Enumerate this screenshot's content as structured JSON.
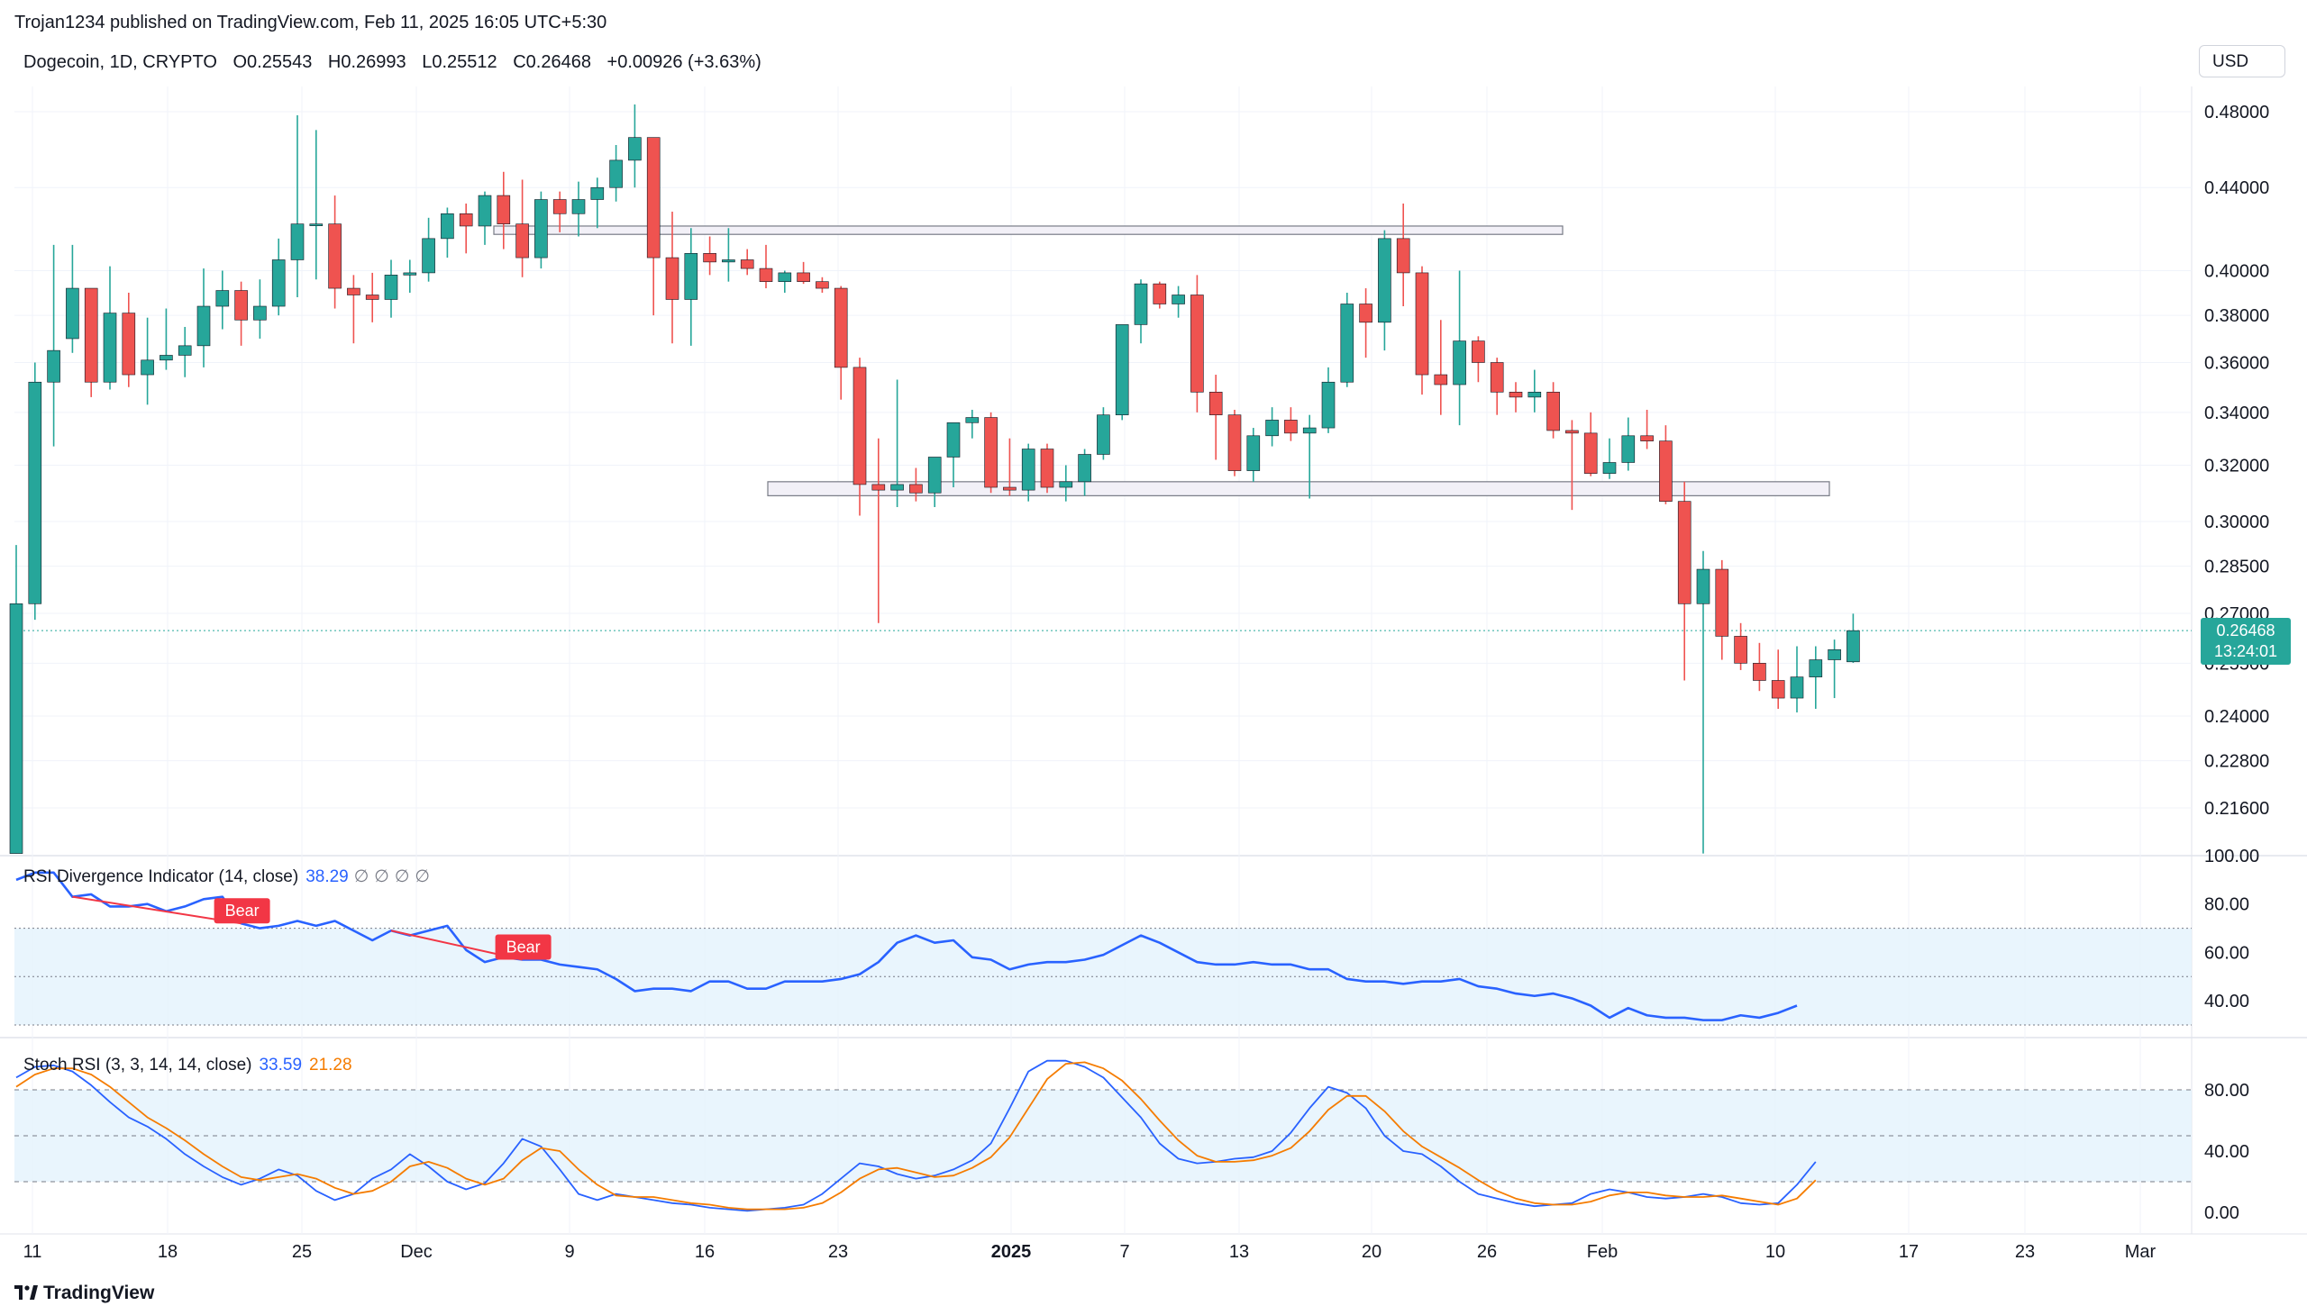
{
  "header": {
    "publisher": "Trojan1234 published on TradingView.com, Feb 11, 2025 16:05 UTC+5:30",
    "symbol": "Dogecoin, 1D, CRYPTO",
    "open": "O0.25543",
    "high": "H0.26993",
    "low": "L0.25512",
    "close": "C0.26468",
    "change": "+0.00926 (+3.63%)",
    "currency": "USD"
  },
  "colors": {
    "up": "#26a69a",
    "down": "#ef5350",
    "rsi_line": "#2962ff",
    "stoch_k": "#2962ff",
    "stoch_d": "#f57c00",
    "band_fill": "#e3f2fd",
    "bear_label": "#f23645"
  },
  "last_price": {
    "value": "0.26468",
    "countdown": "13:24:01"
  },
  "brand": "TradingView",
  "chart_data": [
    {
      "type": "candlestick",
      "title": "Dogecoin, 1D, CRYPTO",
      "y_scale": "log",
      "y_ticks": [
        "0.48000",
        "0.44000",
        "0.40000",
        "0.38000",
        "0.36000",
        "0.34000",
        "0.32000",
        "0.30000",
        "0.28500",
        "0.27000",
        "0.25500",
        "0.24000",
        "0.22800",
        "0.21600"
      ],
      "x_ticks": [
        "11",
        "18",
        "25",
        "Dec",
        "9",
        "16",
        "23",
        "2025",
        "7",
        "13",
        "20",
        "26",
        "Feb",
        "10",
        "17",
        "23",
        "Mar"
      ],
      "ohlc": [
        [
          0.205,
          0.292,
          0.205,
          0.273
        ],
        [
          0.273,
          0.36,
          0.268,
          0.352
        ],
        [
          0.352,
          0.412,
          0.327,
          0.365
        ],
        [
          0.37,
          0.412,
          0.364,
          0.392
        ],
        [
          0.392,
          0.39,
          0.346,
          0.352
        ],
        [
          0.352,
          0.402,
          0.349,
          0.381
        ],
        [
          0.381,
          0.39,
          0.35,
          0.355
        ],
        [
          0.355,
          0.379,
          0.343,
          0.361
        ],
        [
          0.361,
          0.383,
          0.357,
          0.363
        ],
        [
          0.363,
          0.375,
          0.354,
          0.367
        ],
        [
          0.367,
          0.401,
          0.358,
          0.384
        ],
        [
          0.384,
          0.4,
          0.374,
          0.391
        ],
        [
          0.391,
          0.395,
          0.367,
          0.378
        ],
        [
          0.378,
          0.396,
          0.37,
          0.384
        ],
        [
          0.384,
          0.415,
          0.38,
          0.405
        ],
        [
          0.405,
          0.478,
          0.388,
          0.422
        ],
        [
          0.422,
          0.47,
          0.396,
          0.422
        ],
        [
          0.422,
          0.436,
          0.383,
          0.392
        ],
        [
          0.392,
          0.398,
          0.368,
          0.389
        ],
        [
          0.389,
          0.399,
          0.377,
          0.387
        ],
        [
          0.387,
          0.405,
          0.379,
          0.398
        ],
        [
          0.398,
          0.405,
          0.39,
          0.399
        ],
        [
          0.399,
          0.425,
          0.395,
          0.415
        ],
        [
          0.415,
          0.43,
          0.406,
          0.427
        ],
        [
          0.427,
          0.432,
          0.408,
          0.421
        ],
        [
          0.421,
          0.438,
          0.412,
          0.436
        ],
        [
          0.436,
          0.448,
          0.41,
          0.422
        ],
        [
          0.422,
          0.444,
          0.397,
          0.406
        ],
        [
          0.406,
          0.438,
          0.401,
          0.434
        ],
        [
          0.434,
          0.438,
          0.418,
          0.427
        ],
        [
          0.427,
          0.443,
          0.416,
          0.434
        ],
        [
          0.434,
          0.445,
          0.42,
          0.44
        ],
        [
          0.44,
          0.462,
          0.433,
          0.454
        ],
        [
          0.454,
          0.484,
          0.44,
          0.466
        ],
        [
          0.466,
          0.466,
          0.38,
          0.406
        ],
        [
          0.406,
          0.428,
          0.368,
          0.387
        ],
        [
          0.387,
          0.42,
          0.367,
          0.408
        ],
        [
          0.408,
          0.416,
          0.398,
          0.404
        ],
        [
          0.404,
          0.42,
          0.395,
          0.405
        ],
        [
          0.405,
          0.41,
          0.398,
          0.401
        ],
        [
          0.401,
          0.412,
          0.392,
          0.395
        ],
        [
          0.395,
          0.4,
          0.39,
          0.399
        ],
        [
          0.399,
          0.404,
          0.394,
          0.395
        ],
        [
          0.395,
          0.397,
          0.39,
          0.392
        ],
        [
          0.392,
          0.393,
          0.345,
          0.358
        ],
        [
          0.358,
          0.362,
          0.302,
          0.313
        ],
        [
          0.313,
          0.33,
          0.267,
          0.311
        ],
        [
          0.311,
          0.353,
          0.305,
          0.313
        ],
        [
          0.313,
          0.319,
          0.307,
          0.31
        ],
        [
          0.31,
          0.322,
          0.305,
          0.323
        ],
        [
          0.323,
          0.334,
          0.312,
          0.336
        ],
        [
          0.336,
          0.341,
          0.33,
          0.338
        ],
        [
          0.338,
          0.34,
          0.31,
          0.312
        ],
        [
          0.312,
          0.33,
          0.309,
          0.311
        ],
        [
          0.311,
          0.328,
          0.307,
          0.326
        ],
        [
          0.326,
          0.328,
          0.31,
          0.312
        ],
        [
          0.312,
          0.32,
          0.307,
          0.314
        ],
        [
          0.314,
          0.326,
          0.309,
          0.324
        ],
        [
          0.324,
          0.342,
          0.322,
          0.339
        ],
        [
          0.339,
          0.375,
          0.337,
          0.376
        ],
        [
          0.376,
          0.396,
          0.368,
          0.394
        ],
        [
          0.394,
          0.395,
          0.383,
          0.385
        ],
        [
          0.385,
          0.393,
          0.379,
          0.389
        ],
        [
          0.389,
          0.398,
          0.34,
          0.348
        ],
        [
          0.348,
          0.355,
          0.322,
          0.339
        ],
        [
          0.339,
          0.341,
          0.316,
          0.318
        ],
        [
          0.318,
          0.334,
          0.314,
          0.331
        ],
        [
          0.331,
          0.342,
          0.327,
          0.337
        ],
        [
          0.337,
          0.342,
          0.329,
          0.332
        ],
        [
          0.332,
          0.339,
          0.308,
          0.334
        ],
        [
          0.334,
          0.358,
          0.332,
          0.352
        ],
        [
          0.352,
          0.39,
          0.35,
          0.385
        ],
        [
          0.385,
          0.392,
          0.362,
          0.377
        ],
        [
          0.377,
          0.419,
          0.365,
          0.415
        ],
        [
          0.415,
          0.432,
          0.384,
          0.399
        ],
        [
          0.399,
          0.402,
          0.347,
          0.355
        ],
        [
          0.355,
          0.378,
          0.339,
          0.351
        ],
        [
          0.351,
          0.4,
          0.335,
          0.369
        ],
        [
          0.369,
          0.371,
          0.352,
          0.36
        ],
        [
          0.36,
          0.362,
          0.339,
          0.348
        ],
        [
          0.348,
          0.352,
          0.34,
          0.346
        ],
        [
          0.346,
          0.357,
          0.34,
          0.348
        ],
        [
          0.348,
          0.352,
          0.33,
          0.333
        ],
        [
          0.333,
          0.337,
          0.304,
          0.332
        ],
        [
          0.332,
          0.34,
          0.316,
          0.317
        ],
        [
          0.317,
          0.33,
          0.315,
          0.321
        ],
        [
          0.321,
          0.338,
          0.318,
          0.331
        ],
        [
          0.331,
          0.341,
          0.326,
          0.329
        ],
        [
          0.329,
          0.335,
          0.306,
          0.307
        ],
        [
          0.307,
          0.314,
          0.25,
          0.273
        ],
        [
          0.273,
          0.29,
          0.205,
          0.284
        ],
        [
          0.284,
          0.287,
          0.256,
          0.263
        ],
        [
          0.263,
          0.267,
          0.253,
          0.255
        ],
        [
          0.255,
          0.261,
          0.247,
          0.25
        ],
        [
          0.25,
          0.259,
          0.242,
          0.245
        ],
        [
          0.245,
          0.26,
          0.241,
          0.251
        ],
        [
          0.251,
          0.26,
          0.242,
          0.256
        ],
        [
          0.256,
          0.262,
          0.245,
          0.259
        ],
        [
          0.2554,
          0.2699,
          0.2551,
          0.2647
        ]
      ],
      "annotations": {
        "resistance_zone": [
          0.417,
          0.421
        ],
        "support_zone": [
          0.309,
          0.314
        ]
      }
    },
    {
      "type": "line",
      "title": "RSI Divergence Indicator (14, close)",
      "value_label": "38.29",
      "y_ticks": [
        "100.00",
        "80.00",
        "60.00",
        "40.00"
      ],
      "ylim": [
        30,
        100
      ],
      "band": [
        30,
        70
      ],
      "midline": 50,
      "values": [
        90,
        93,
        93,
        83,
        84,
        79,
        79,
        80,
        77,
        79,
        82,
        83,
        72,
        70,
        71,
        73,
        71,
        73,
        69,
        65,
        69,
        67,
        69,
        71,
        61,
        56,
        58,
        57,
        57,
        55,
        54,
        53,
        49,
        44,
        45,
        45,
        44,
        48,
        48,
        45,
        45,
        48,
        48,
        48,
        49,
        51,
        56,
        64,
        67,
        64,
        65,
        58,
        57,
        53,
        55,
        56,
        56,
        57,
        59,
        63,
        67,
        64,
        60,
        56,
        55,
        55,
        56,
        55,
        55,
        53,
        53,
        49,
        48,
        48,
        47,
        48,
        48,
        49,
        46,
        45,
        43,
        42,
        43,
        41,
        38,
        33,
        37,
        34,
        33,
        33,
        32,
        32,
        34,
        33,
        35,
        38
      ],
      "bear_labels": [
        {
          "text": "Bear",
          "from_bar": 3,
          "to_bar": 12
        },
        {
          "text": "Bear",
          "from_bar": 20,
          "to_bar": 27
        }
      ]
    },
    {
      "type": "line",
      "title": "Stoch RSI (3, 3, 14, 14, close)",
      "value_k": "33.59",
      "value_d": "21.28",
      "y_ticks": [
        "80.00",
        "40.00",
        "0.00"
      ],
      "ylim": [
        -5,
        105
      ],
      "band": [
        20,
        80
      ],
      "midline": 50,
      "series": [
        {
          "name": "K",
          "values": [
            88,
            95,
            96,
            92,
            83,
            72,
            62,
            56,
            48,
            38,
            30,
            23,
            18,
            22,
            28,
            24,
            14,
            8,
            12,
            22,
            28,
            38,
            30,
            20,
            15,
            19,
            32,
            48,
            43,
            28,
            12,
            8,
            12,
            10,
            8,
            6,
            5,
            3,
            2,
            1,
            2,
            3,
            5,
            12,
            22,
            32,
            30,
            25,
            22,
            24,
            28,
            34,
            45,
            68,
            92,
            99,
            99,
            95,
            88,
            75,
            62,
            45,
            35,
            32,
            33,
            35,
            36,
            40,
            52,
            68,
            82,
            78,
            68,
            50,
            40,
            38,
            30,
            20,
            12,
            9,
            6,
            4,
            5,
            6,
            12,
            15,
            13,
            10,
            9,
            10,
            12,
            10,
            6,
            5,
            6,
            18,
            33
          ]
        },
        {
          "name": "D",
          "values": [
            82,
            90,
            94,
            94,
            90,
            82,
            72,
            62,
            55,
            47,
            38,
            30,
            23,
            21,
            23,
            25,
            22,
            16,
            12,
            14,
            20,
            30,
            33,
            29,
            22,
            18,
            22,
            34,
            42,
            40,
            28,
            18,
            11,
            10,
            10,
            8,
            6,
            5,
            3,
            2,
            2,
            2,
            3,
            6,
            13,
            22,
            28,
            29,
            26,
            23,
            24,
            29,
            36,
            49,
            68,
            87,
            97,
            98,
            94,
            86,
            74,
            60,
            47,
            37,
            33,
            33,
            34,
            37,
            42,
            53,
            67,
            76,
            76,
            66,
            53,
            43,
            36,
            29,
            21,
            14,
            9,
            6,
            5,
            5,
            7,
            11,
            13,
            13,
            11,
            10,
            10,
            11,
            9,
            7,
            5,
            9,
            21
          ]
        }
      ]
    }
  ]
}
